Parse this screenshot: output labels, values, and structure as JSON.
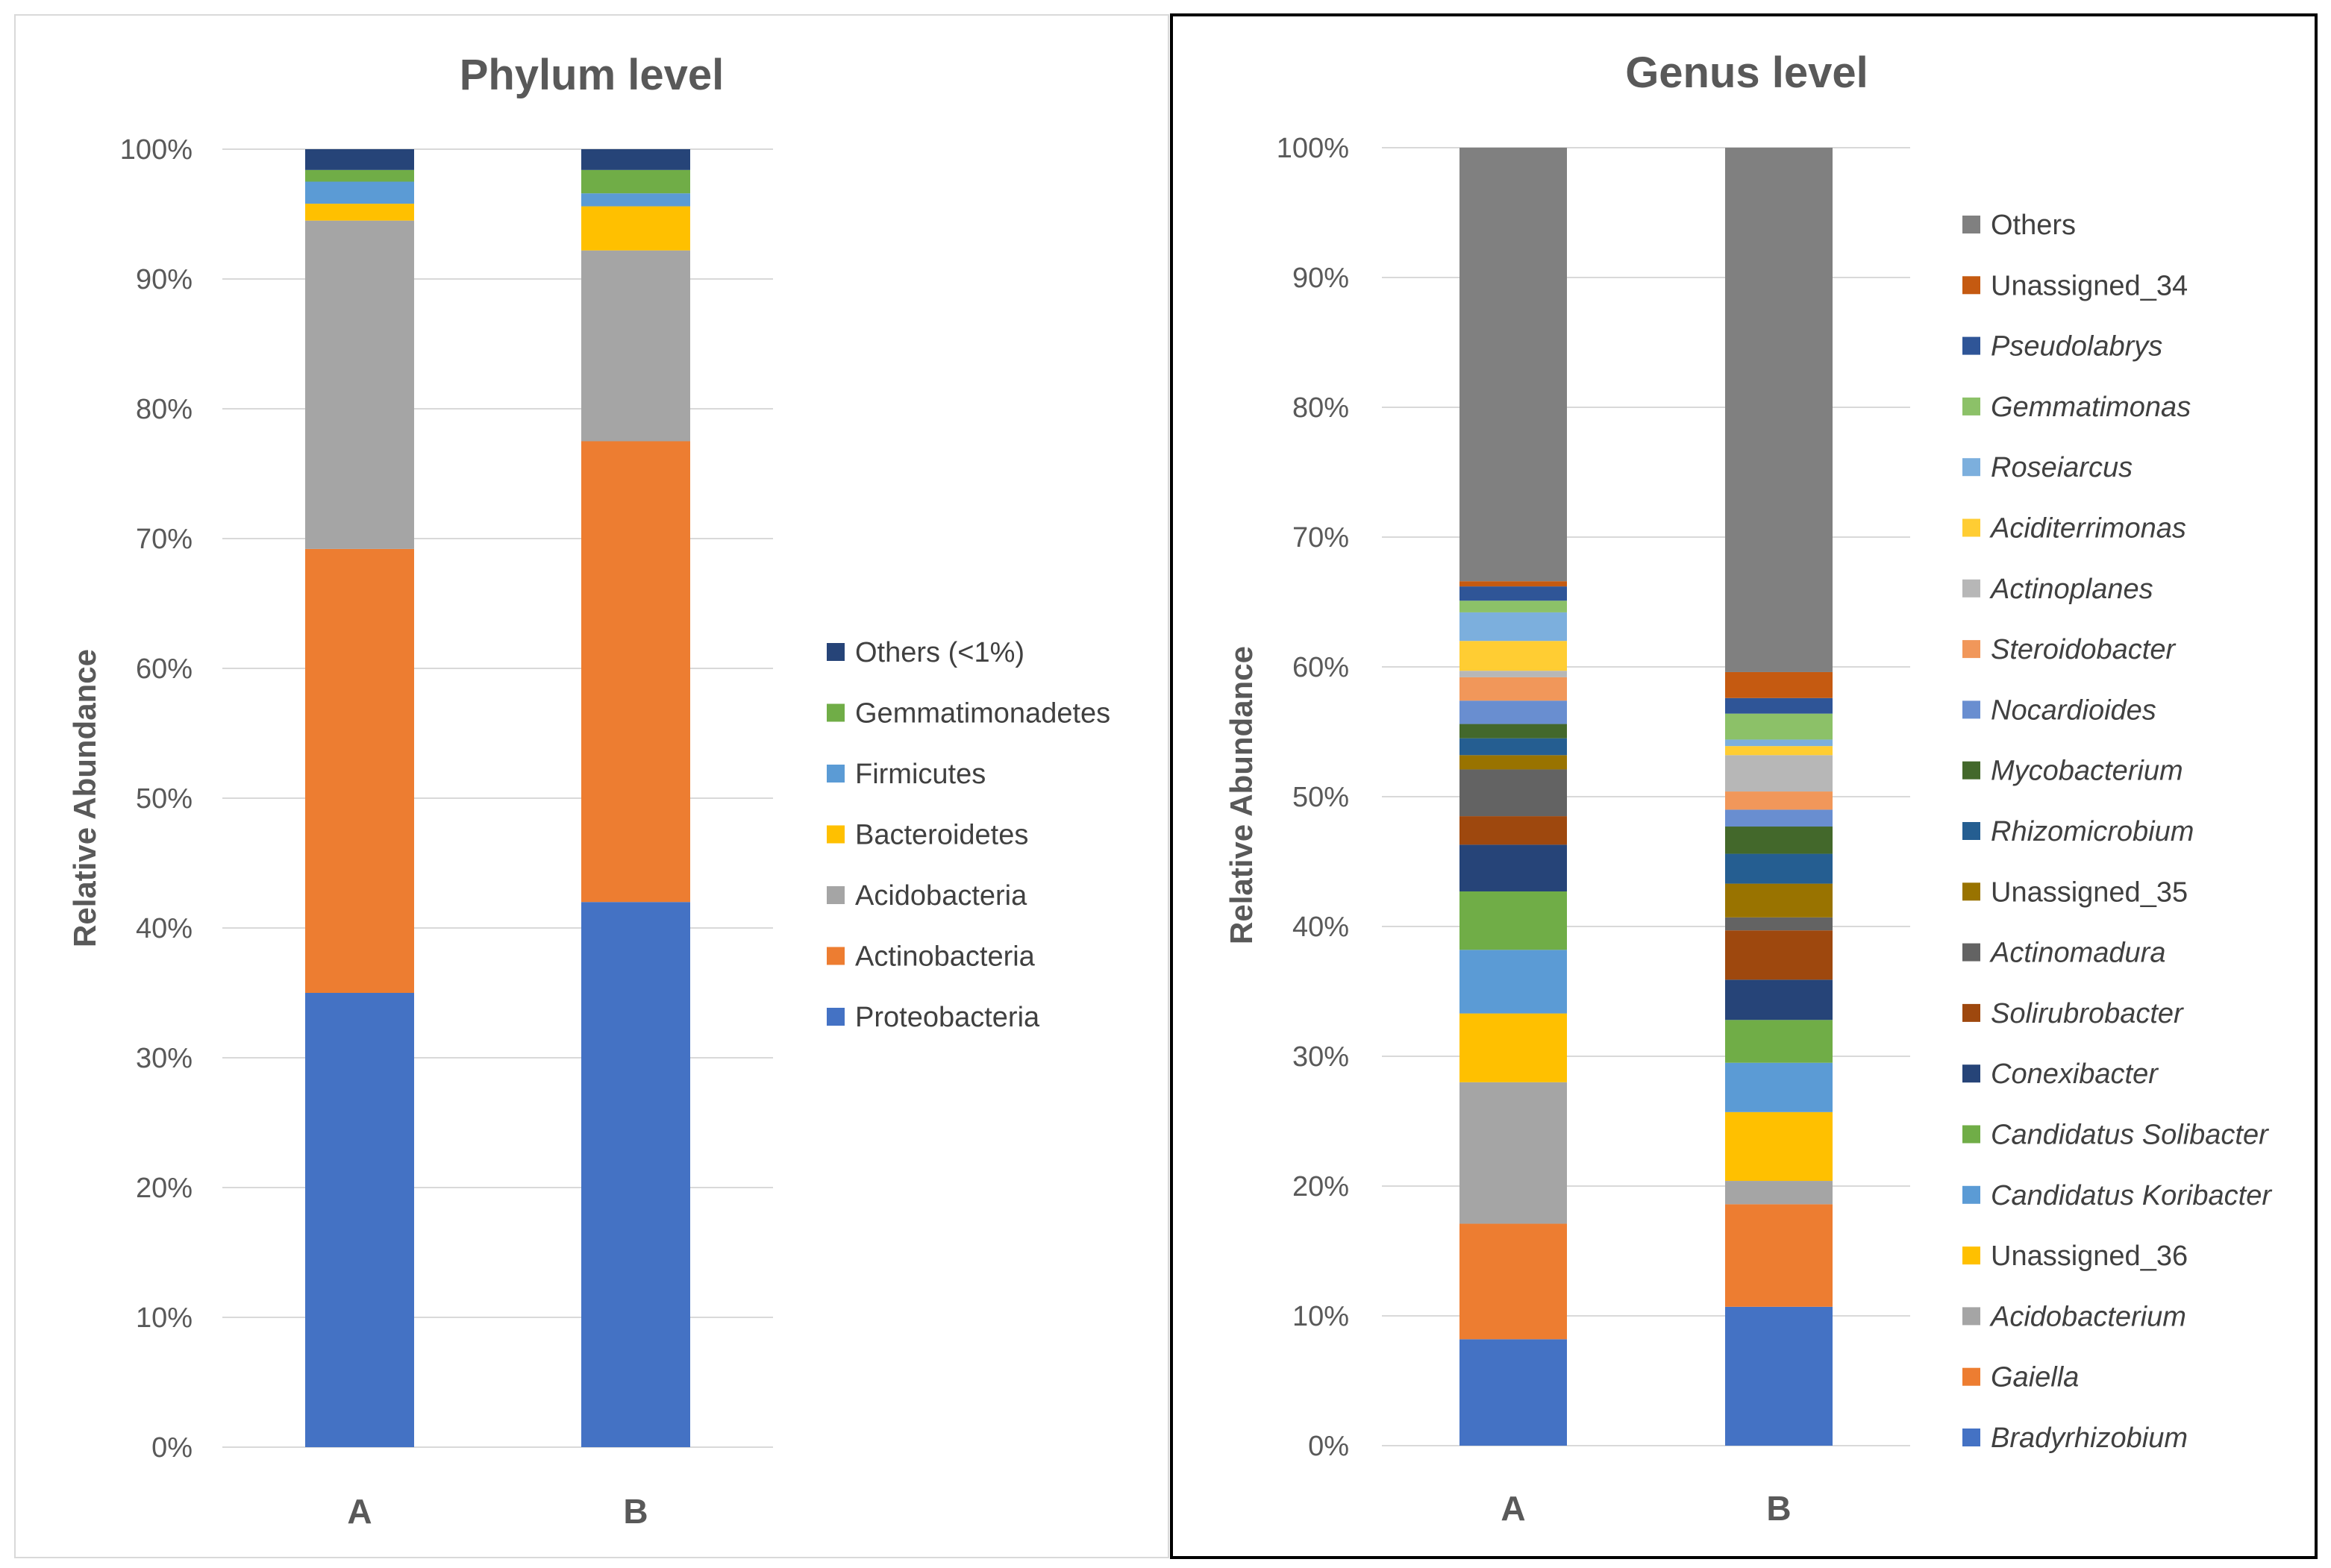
{
  "chart_data": [
    {
      "type": "bar",
      "stacked": "percent",
      "title": "Phylum level",
      "xlabel": "",
      "ylabel": "Relative Abundance",
      "ylim": [
        0,
        100
      ],
      "yticks": [
        "0%",
        "10%",
        "20%",
        "30%",
        "40%",
        "50%",
        "60%",
        "70%",
        "80%",
        "90%",
        "100%"
      ],
      "categories": [
        "A",
        "B"
      ],
      "grid": true,
      "legend_position": "right",
      "series": [
        {
          "name": "Proteobacteria",
          "italic": false,
          "color": "#4472C4",
          "values": [
            35.0,
            42.0
          ]
        },
        {
          "name": "Actinobacteria",
          "italic": false,
          "color": "#ED7D31",
          "values": [
            34.2,
            35.5
          ]
        },
        {
          "name": "Acidobacteria",
          "italic": false,
          "color": "#A5A5A5",
          "values": [
            25.3,
            14.7
          ]
        },
        {
          "name": "Bacteroidetes",
          "italic": false,
          "color": "#FFC000",
          "values": [
            1.3,
            3.4
          ]
        },
        {
          "name": "Firmicutes",
          "italic": false,
          "color": "#5B9BD5",
          "values": [
            1.7,
            1.0
          ]
        },
        {
          "name": "Gemmatimonadetes",
          "italic": false,
          "color": "#70AD47",
          "values": [
            0.9,
            1.8
          ]
        },
        {
          "name": "Others (<1%)",
          "italic": false,
          "color": "#264478",
          "values": [
            1.6,
            1.6
          ]
        }
      ]
    },
    {
      "type": "bar",
      "stacked": "percent",
      "title": "Genus level",
      "xlabel": "",
      "ylabel": "Relative Abundance",
      "ylim": [
        0,
        100
      ],
      "yticks": [
        "0%",
        "10%",
        "20%",
        "30%",
        "40%",
        "50%",
        "60%",
        "70%",
        "80%",
        "90%",
        "100%"
      ],
      "categories": [
        "A",
        "B"
      ],
      "grid": true,
      "legend_position": "right",
      "series": [
        {
          "name": "Bradyrhizobium",
          "italic": true,
          "color": "#4472C4",
          "values": [
            8.2,
            10.7
          ]
        },
        {
          "name": "Gaiella",
          "italic": true,
          "color": "#ED7D31",
          "values": [
            8.9,
            7.9
          ]
        },
        {
          "name": "Acidobacterium",
          "italic": true,
          "color": "#A5A5A5",
          "values": [
            10.9,
            1.8
          ]
        },
        {
          "name": "Unassigned_36",
          "italic": false,
          "color": "#FFC000",
          "values": [
            5.3,
            5.3
          ]
        },
        {
          "name": "Candidatus Koribacter",
          "italic": true,
          "color": "#5B9BD5",
          "values": [
            4.9,
            3.8
          ]
        },
        {
          "name": "Candidatus Solibacter",
          "italic": true,
          "color": "#70AD47",
          "values": [
            4.5,
            3.3
          ]
        },
        {
          "name": "Conexibacter",
          "italic": true,
          "color": "#264478",
          "values": [
            3.6,
            3.1
          ]
        },
        {
          "name": "Solirubrobacter",
          "italic": true,
          "color": "#9E480E",
          "values": [
            2.2,
            3.8
          ]
        },
        {
          "name": "Actinomadura",
          "italic": true,
          "color": "#636363",
          "values": [
            3.6,
            1.0
          ]
        },
        {
          "name": "Unassigned_35",
          "italic": false,
          "color": "#997300",
          "values": [
            1.1,
            2.6
          ]
        },
        {
          "name": "Rhizomicrobium",
          "italic": true,
          "color": "#255E91",
          "values": [
            1.3,
            2.3
          ]
        },
        {
          "name": "Mycobacterium",
          "italic": true,
          "color": "#43682B",
          "values": [
            1.1,
            2.1
          ]
        },
        {
          "name": "Nocardioides",
          "italic": true,
          "color": "#698ED0",
          "values": [
            1.8,
            1.3
          ]
        },
        {
          "name": "Steroidobacter",
          "italic": true,
          "color": "#F1975A",
          "values": [
            1.8,
            1.4
          ]
        },
        {
          "name": "Actinoplanes",
          "italic": true,
          "color": "#B7B7B7",
          "values": [
            0.5,
            2.8
          ]
        },
        {
          "name": "Aciditerrimonas",
          "italic": true,
          "color": "#FFCD33",
          "values": [
            2.3,
            0.7
          ]
        },
        {
          "name": "Roseiarcus",
          "italic": true,
          "color": "#7CAFDD",
          "values": [
            2.2,
            0.5
          ]
        },
        {
          "name": "Gemmatimonas",
          "italic": true,
          "color": "#8CC168",
          "values": [
            0.9,
            2.0
          ]
        },
        {
          "name": "Pseudolabrys",
          "italic": true,
          "color": "#2F5597",
          "values": [
            1.1,
            1.2
          ]
        },
        {
          "name": "Unassigned_34",
          "italic": false,
          "color": "#C55A11",
          "values": [
            0.4,
            2.0
          ]
        },
        {
          "name": "Others",
          "italic": false,
          "color": "#808080",
          "values": [
            33.4,
            40.4
          ]
        }
      ]
    }
  ]
}
